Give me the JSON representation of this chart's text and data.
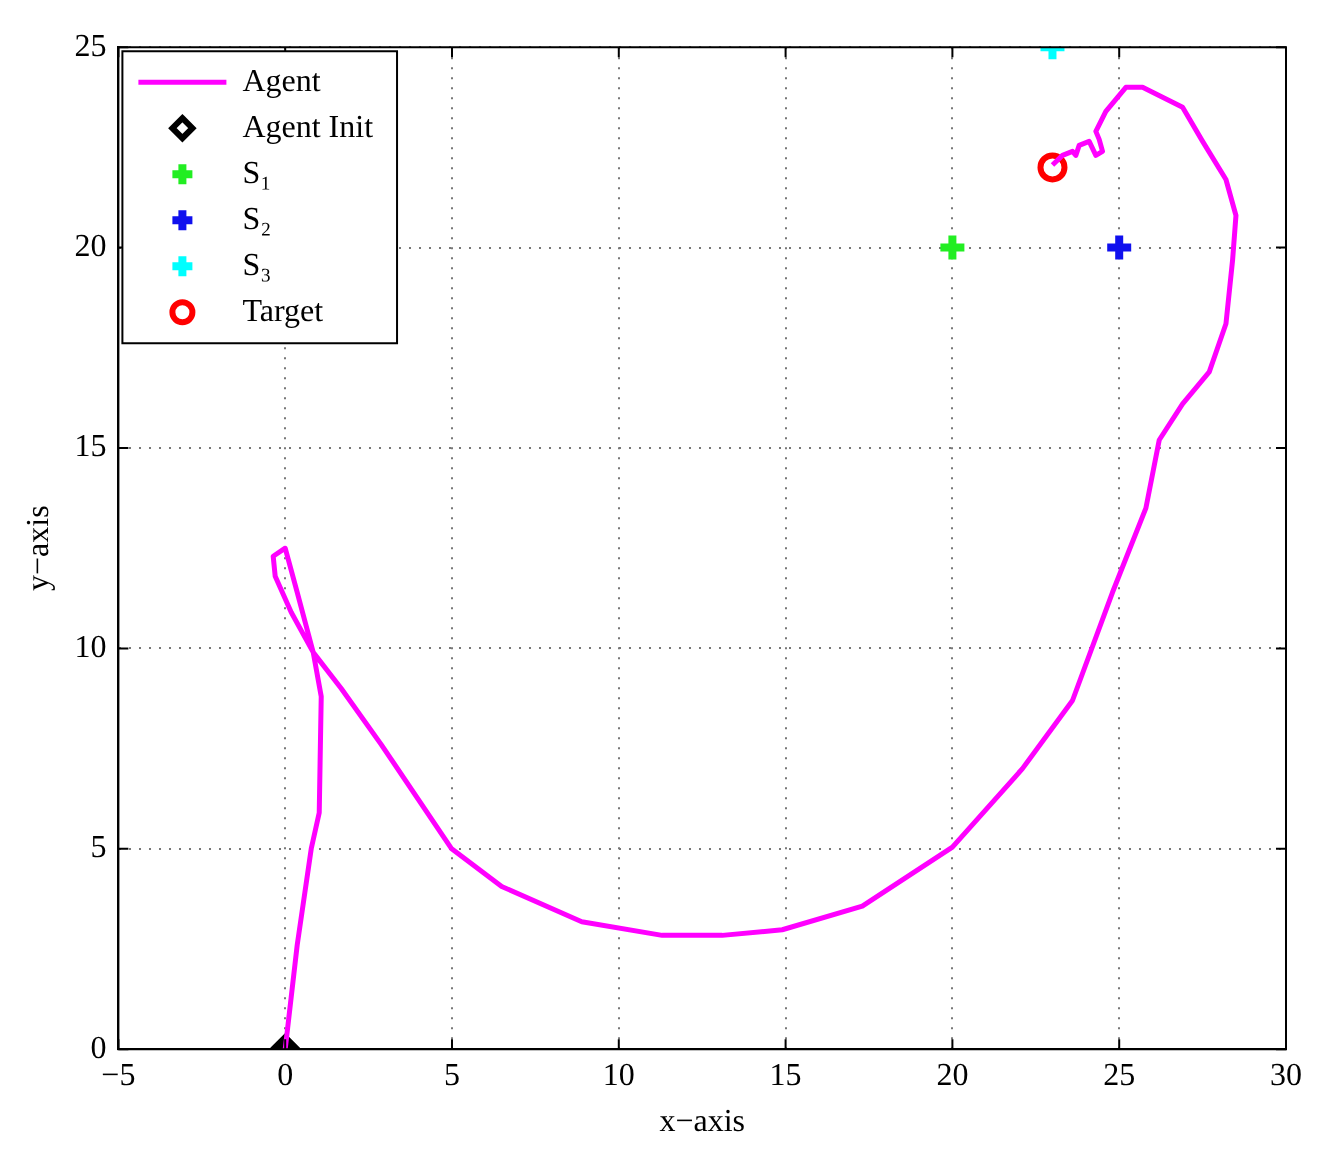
{
  "chart_data": {
    "type": "line",
    "xlabel": "x−axis",
    "ylabel": "y−axis",
    "xlim": [
      -5,
      30
    ],
    "ylim": [
      0,
      25
    ],
    "xticks": [
      -5,
      0,
      5,
      10,
      15,
      20,
      25,
      30
    ],
    "yticks": [
      0,
      5,
      10,
      15,
      20,
      25
    ],
    "grid": true,
    "legend": "top left",
    "line_style": "solid",
    "series": [
      {
        "name": "Agent",
        "marker": "none",
        "color": "#ff00ff",
        "x": [
          0,
          0.36,
          0.78,
          1.02,
          1.08,
          0.84,
          0.36,
          0,
          -0.36,
          -0.3,
          0.18,
          0.84,
          1.68,
          2.88,
          4.99,
          6.49,
          8.89,
          11.3,
          13.1,
          14.9,
          17.3,
          20.0,
          22.1,
          23.6,
          24.8,
          25.8,
          26.2,
          26.9,
          27.7,
          28.2,
          28.4,
          28.5,
          28.2,
          27.5,
          26.9,
          25.7,
          25.2,
          24.6,
          24.3,
          24.4,
          24.5,
          24.3,
          24.1,
          23.8,
          23.7,
          23.6,
          23.3,
          23.0
        ],
        "values": [
          0,
          2.6,
          5.0,
          5.9,
          8.8,
          9.9,
          11.4,
          12.5,
          12.3,
          11.8,
          10.9,
          9.9,
          9.0,
          7.6,
          5.0,
          4.06,
          3.18,
          2.84,
          2.84,
          2.98,
          3.57,
          5.04,
          7.0,
          8.7,
          11.4,
          13.5,
          15.2,
          16.1,
          16.9,
          18.1,
          19.7,
          20.8,
          21.7,
          22.65,
          23.5,
          24.0,
          24.0,
          23.4,
          22.9,
          22.7,
          22.4,
          22.3,
          22.65,
          22.55,
          22.3,
          22.4,
          22.3,
          22.06
        ]
      },
      {
        "name": "Agent Init",
        "type": "scatter",
        "marker": "diamond",
        "color": "#000000",
        "x": [
          0
        ],
        "values": [
          0
        ]
      },
      {
        "name": "S₁",
        "type": "scatter",
        "marker": "cross",
        "color": "#22ee22",
        "x": [
          20
        ],
        "values": [
          20
        ]
      },
      {
        "name": "S₂",
        "type": "scatter",
        "marker": "cross",
        "color": "#1010ee",
        "x": [
          25
        ],
        "values": [
          20
        ]
      },
      {
        "name": "S₃",
        "type": "scatter",
        "marker": "cross",
        "color": "#00ffff",
        "x": [
          23
        ],
        "values": [
          25
        ]
      },
      {
        "name": "Target",
        "type": "scatter",
        "marker": "circle",
        "color": "#ff0000",
        "x": [
          23
        ],
        "values": [
          22
        ]
      }
    ]
  }
}
